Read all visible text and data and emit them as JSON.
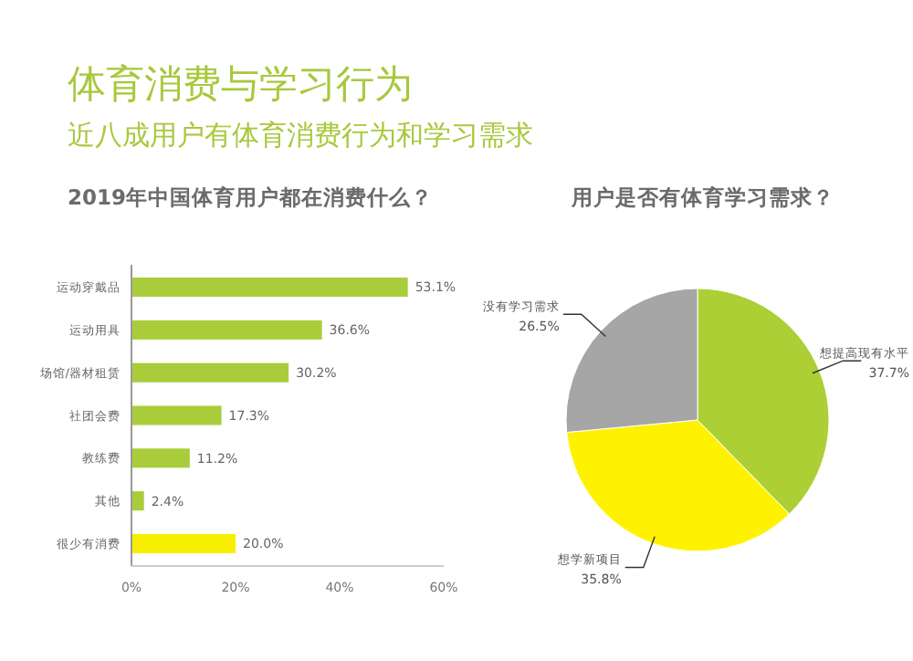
{
  "chart_data": [
    {
      "type": "other",
      "title": "体育消费与学习行为",
      "subtitle": "近八成用户有体育消费行为和学习需求"
    },
    {
      "type": "bar",
      "orientation": "horizontal",
      "title": "2019年中国体育用户都在消费什么？",
      "categories": [
        "运动穿戴品",
        "运动用具",
        "场馆/器材租赁",
        "社团会费",
        "教练费",
        "其他",
        "很少有消费"
      ],
      "values": [
        53.1,
        36.6,
        30.2,
        17.3,
        11.2,
        2.4,
        20.0
      ],
      "colors": [
        "#a9cd3a",
        "#a9cd3a",
        "#a9cd3a",
        "#a9cd3a",
        "#a9cd3a",
        "#a9cd3a",
        "#f7ef00"
      ],
      "value_labels": [
        "53.1%",
        "36.6%",
        "30.2%",
        "17.3%",
        "11.2%",
        "2.4%",
        "20.0%"
      ],
      "xlim": [
        0,
        60
      ],
      "xticks": [
        {
          "value": 0,
          "label": "0%"
        },
        {
          "value": 20,
          "label": "20%"
        },
        {
          "value": 40,
          "label": "40%"
        },
        {
          "value": 60,
          "label": "60%"
        }
      ],
      "grid": false
    },
    {
      "type": "pie",
      "title": "用户是否有体育学习需求？",
      "categories": [
        "想提高现有水平",
        "想学新项目",
        "没有学习需求"
      ],
      "values": [
        37.7,
        35.8,
        26.5
      ],
      "colors": [
        "#abcf35",
        "#fff200",
        "#a6a6a6"
      ],
      "value_labels": [
        "37.7%",
        "35.8%",
        "26.5%"
      ]
    }
  ]
}
